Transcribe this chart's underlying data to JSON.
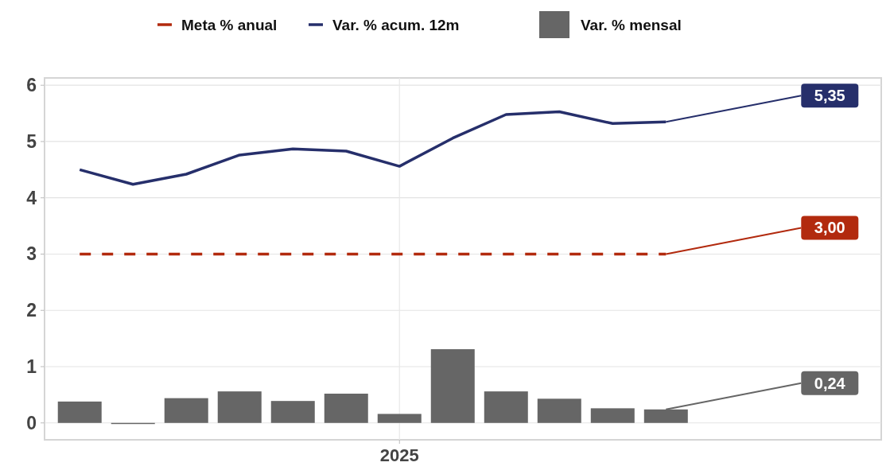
{
  "chart_data": {
    "type": "line",
    "categories": [
      null,
      null,
      null,
      null,
      null,
      null,
      "2025",
      null,
      null,
      null,
      null,
      null
    ],
    "series": [
      {
        "name": "Var. % mensal",
        "type": "bar",
        "color": "#666666",
        "values": [
          0.38,
          -0.02,
          0.44,
          0.56,
          0.39,
          0.52,
          0.16,
          1.31,
          0.56,
          0.43,
          0.26,
          0.24
        ],
        "value_labels": [
          null,
          null,
          null,
          null,
          null,
          null,
          null,
          null,
          null,
          null,
          null,
          "0,24"
        ]
      },
      {
        "name": "Meta % anual",
        "color": "#b22a0e",
        "line_style": "dashed",
        "values": [
          3,
          3,
          3,
          3,
          3,
          3,
          3,
          3,
          3,
          3,
          3,
          3
        ],
        "value_labels": [
          null,
          null,
          null,
          null,
          null,
          null,
          null,
          null,
          null,
          null,
          null,
          "3,00"
        ]
      },
      {
        "name": "Var. % acum. 12m",
        "color": "#262f6b",
        "line_style": "solid",
        "values": [
          4.5,
          4.24,
          4.42,
          4.76,
          4.87,
          4.83,
          4.56,
          5.06,
          5.48,
          5.53,
          5.32,
          5.35
        ],
        "value_labels": [
          null,
          null,
          null,
          null,
          null,
          null,
          null,
          null,
          null,
          null,
          null,
          "5,35"
        ]
      }
    ],
    "ylim": [
      -0.3,
      6.13
    ],
    "yticks": [
      0,
      1,
      2,
      3,
      4,
      5,
      6
    ],
    "grid": true,
    "legend": "top",
    "marker": "none"
  }
}
